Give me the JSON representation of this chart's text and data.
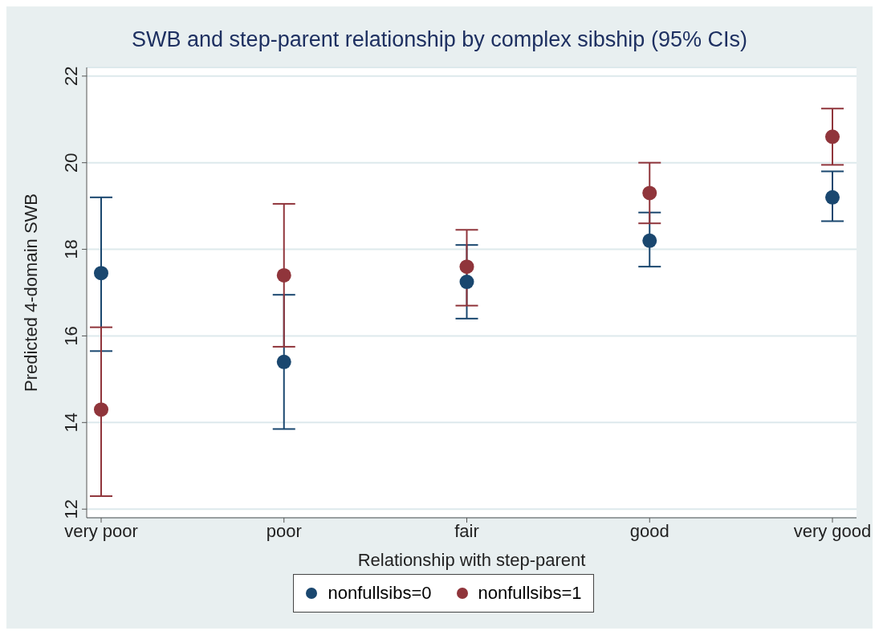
{
  "chart_data": {
    "type": "scatter",
    "title": "SWB and step-parent relationship by complex sibship (95% CIs)",
    "xlabel": "Relationship with step-parent",
    "ylabel": "Predicted 4-domain SWB",
    "categories": [
      "very poor",
      "poor",
      "fair",
      "good",
      "very good"
    ],
    "series": [
      {
        "name": "nonfullsibs=0",
        "color": "#1a476f",
        "values": [
          17.45,
          15.4,
          17.25,
          18.2,
          19.2
        ],
        "errors": [
          [
            15.65,
            19.2
          ],
          [
            13.85,
            16.95
          ],
          [
            16.4,
            18.1
          ],
          [
            17.6,
            18.85
          ],
          [
            18.65,
            19.8
          ]
        ]
      },
      {
        "name": "nonfullsibs=1",
        "color": "#90353b",
        "values": [
          14.3,
          17.4,
          17.6,
          19.3,
          20.6
        ],
        "errors": [
          [
            12.3,
            16.2
          ],
          [
            15.75,
            19.05
          ],
          [
            16.7,
            18.45
          ],
          [
            18.6,
            20.0
          ],
          [
            19.95,
            21.25
          ]
        ]
      }
    ],
    "ylim": [
      11.8,
      22.2
    ],
    "yticks": [
      12,
      14,
      16,
      18,
      20,
      22
    ],
    "grid": "y",
    "legend": "bottom",
    "marker": "circle"
  }
}
